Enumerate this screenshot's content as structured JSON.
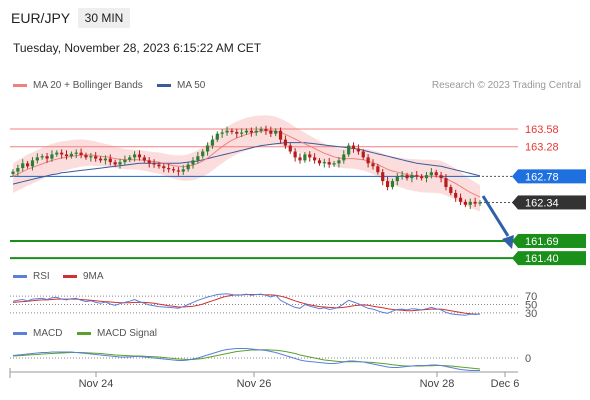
{
  "header": {
    "symbol": "EUR/JPY",
    "timeframe": "30 MIN",
    "datetime": "Tuesday, November 28, 2023 6:15:22 AM CET"
  },
  "legend": {
    "ma20_label": "MA 20 + Bollinger Bands",
    "ma50_label": "MA 50",
    "credit": "Research © 2023 Trading Central"
  },
  "rsi_legend": {
    "rsi_label": "RSI",
    "ma9_label": "9MA"
  },
  "macd_legend": {
    "macd_label": "MACD",
    "signal_label": "MACD Signal"
  },
  "colors": {
    "ma20": "#f08080",
    "bands_fill": "#fbd5d5",
    "ma50": "#3a5a9a",
    "up": "#2e7d32",
    "down": "#b71c1c",
    "support": "#1a8f1a",
    "resistance": "#f08080",
    "pivot": "#1565c0",
    "current": "#333333",
    "rsi": "#5b7fdb",
    "rsi_ma": "#d32f2f",
    "macd": "#5b7fdb",
    "macd_signal": "#5aa02c"
  },
  "chart_data": {
    "type": "candlestick",
    "x_ticks": [
      "Nov 24",
      "Nov 26",
      "Nov 28",
      "Dec 6"
    ],
    "price_ylim": [
      161.2,
      163.9
    ],
    "levels": [
      {
        "value": 163.58,
        "label": "163.58",
        "kind": "resistance"
      },
      {
        "value": 163.28,
        "label": "163.28",
        "kind": "resistance"
      },
      {
        "value": 162.78,
        "label": "162.78",
        "kind": "pivot"
      },
      {
        "value": 162.34,
        "label": "162.34",
        "kind": "current"
      },
      {
        "value": 161.69,
        "label": "161.69",
        "kind": "support"
      },
      {
        "value": 161.4,
        "label": "161.40",
        "kind": "support"
      }
    ],
    "closes": [
      162.86,
      162.92,
      163.0,
      162.95,
      163.05,
      163.1,
      163.12,
      163.08,
      163.15,
      163.18,
      163.15,
      163.12,
      163.16,
      163.18,
      163.14,
      163.1,
      163.12,
      163.08,
      163.05,
      163.08,
      163.02,
      162.98,
      163.02,
      163.06,
      163.1,
      163.15,
      163.1,
      163.05,
      163.0,
      162.98,
      162.95,
      162.92,
      162.9,
      162.88,
      162.86,
      162.9,
      162.98,
      163.05,
      163.12,
      163.2,
      163.3,
      163.4,
      163.5,
      163.52,
      163.55,
      163.53,
      163.5,
      163.52,
      163.55,
      163.52,
      163.55,
      163.58,
      163.55,
      163.5,
      163.55,
      163.4,
      163.3,
      163.2,
      163.1,
      163.05,
      163.15,
      163.1,
      163.05,
      163.0,
      163.02,
      162.98,
      163.0,
      163.05,
      163.15,
      163.3,
      163.25,
      163.2,
      163.1,
      163.0,
      162.95,
      162.85,
      162.7,
      162.6,
      162.7,
      162.78,
      162.8,
      162.75,
      162.8,
      162.78,
      162.75,
      162.8,
      162.85,
      162.8,
      162.75,
      162.6,
      162.5,
      162.42,
      162.35,
      162.3,
      162.35,
      162.32,
      162.34
    ],
    "ma20": [
      162.78,
      162.82,
      162.86,
      162.9,
      162.93,
      162.96,
      162.99,
      163.02,
      163.05,
      163.07,
      163.09,
      163.1,
      163.12,
      163.13,
      163.14,
      163.14,
      163.14,
      163.13,
      163.12,
      163.11,
      163.1,
      163.08,
      163.07,
      163.06,
      163.06,
      163.06,
      163.06,
      163.05,
      163.04,
      163.03,
      163.02,
      163.0,
      162.98,
      162.96,
      162.95,
      162.94,
      162.95,
      162.97,
      163.0,
      163.04,
      163.09,
      163.15,
      163.22,
      163.28,
      163.34,
      163.39,
      163.43,
      163.46,
      163.49,
      163.51,
      163.53,
      163.54,
      163.55,
      163.55,
      163.54,
      163.52,
      163.49,
      163.45,
      163.41,
      163.37,
      163.33,
      163.29,
      163.25,
      163.21,
      163.17,
      163.14,
      163.11,
      163.09,
      163.08,
      163.08,
      163.08,
      163.07,
      163.06,
      163.04,
      163.01,
      162.98,
      162.94,
      162.9,
      162.87,
      162.85,
      162.83,
      162.81,
      162.8,
      162.79,
      162.78,
      162.78,
      162.78,
      162.78,
      162.77,
      162.74,
      162.7,
      162.66,
      162.61,
      162.56,
      162.51,
      162.47,
      162.43
    ],
    "ma50": [
      162.65,
      162.67,
      162.69,
      162.71,
      162.73,
      162.75,
      162.77,
      162.79,
      162.81,
      162.82,
      162.84,
      162.85,
      162.86,
      162.87,
      162.88,
      162.89,
      162.9,
      162.91,
      162.92,
      162.93,
      162.94,
      162.95,
      162.96,
      162.97,
      162.98,
      162.99,
      163.0,
      163.0,
      163.0,
      163.0,
      163.0,
      163.0,
      163.0,
      163.0,
      163.0,
      163.01,
      163.02,
      163.03,
      163.04,
      163.06,
      163.08,
      163.1,
      163.12,
      163.14,
      163.16,
      163.18,
      163.2,
      163.22,
      163.24,
      163.26,
      163.28,
      163.3,
      163.31,
      163.32,
      163.33,
      163.34,
      163.35,
      163.35,
      163.35,
      163.35,
      163.35,
      163.34,
      163.33,
      163.32,
      163.31,
      163.3,
      163.29,
      163.28,
      163.27,
      163.26,
      163.25,
      163.24,
      163.22,
      163.2,
      163.18,
      163.16,
      163.14,
      163.12,
      163.1,
      163.08,
      163.06,
      163.04,
      163.02,
      163.0,
      162.99,
      162.98,
      162.97,
      162.96,
      162.95,
      162.93,
      162.91,
      162.89,
      162.87,
      162.85,
      162.83,
      162.81,
      162.79
    ],
    "rsi_ticks": [
      70,
      50,
      30
    ],
    "rsi": [
      58,
      60,
      62,
      59,
      63,
      64,
      65,
      62,
      66,
      67,
      63,
      61,
      64,
      65,
      60,
      57,
      59,
      55,
      53,
      56,
      51,
      48,
      52,
      55,
      58,
      62,
      57,
      53,
      49,
      47,
      45,
      44,
      43,
      42,
      41,
      45,
      50,
      55,
      60,
      64,
      68,
      71,
      74,
      75,
      76,
      74,
      72,
      73,
      75,
      72,
      74,
      75,
      72,
      68,
      72,
      60,
      54,
      48,
      43,
      41,
      50,
      46,
      43,
      40,
      42,
      38,
      40,
      44,
      52,
      60,
      56,
      52,
      46,
      41,
      39,
      35,
      31,
      29,
      34,
      38,
      39,
      37,
      40,
      39,
      37,
      40,
      43,
      40,
      37,
      31,
      28,
      26,
      25,
      24,
      27,
      26,
      28
    ],
    "rsi_ma": [
      55,
      56,
      57,
      58,
      59,
      60,
      61,
      61,
      62,
      63,
      63,
      63,
      63,
      63,
      62,
      61,
      60,
      59,
      58,
      57,
      56,
      55,
      54,
      54,
      54,
      55,
      55,
      55,
      54,
      53,
      51,
      49,
      47,
      46,
      44,
      44,
      45,
      46,
      48,
      51,
      55,
      59,
      63,
      67,
      70,
      72,
      73,
      73,
      74,
      74,
      74,
      74,
      73,
      73,
      72,
      70,
      67,
      63,
      59,
      55,
      52,
      49,
      47,
      45,
      44,
      43,
      42,
      42,
      43,
      45,
      47,
      48,
      49,
      48,
      46,
      44,
      42,
      40,
      38,
      37,
      36,
      35,
      35,
      36,
      37,
      38,
      39,
      39,
      39,
      37,
      35,
      33,
      31,
      29,
      28,
      27,
      27
    ],
    "macd_zero_label": "0",
    "macd": [
      0.05,
      0.06,
      0.07,
      0.08,
      0.09,
      0.1,
      0.11,
      0.11,
      0.12,
      0.12,
      0.12,
      0.12,
      0.12,
      0.11,
      0.1,
      0.09,
      0.08,
      0.07,
      0.06,
      0.05,
      0.04,
      0.03,
      0.02,
      0.02,
      0.02,
      0.03,
      0.03,
      0.02,
      0.01,
      0.0,
      -0.01,
      -0.02,
      -0.03,
      -0.04,
      -0.05,
      -0.05,
      -0.04,
      -0.02,
      0.0,
      0.03,
      0.06,
      0.09,
      0.12,
      0.15,
      0.17,
      0.18,
      0.19,
      0.19,
      0.19,
      0.18,
      0.17,
      0.16,
      0.15,
      0.13,
      0.11,
      0.08,
      0.05,
      0.02,
      -0.01,
      -0.04,
      -0.06,
      -0.07,
      -0.08,
      -0.09,
      -0.1,
      -0.11,
      -0.11,
      -0.1,
      -0.08,
      -0.06,
      -0.06,
      -0.07,
      -0.08,
      -0.1,
      -0.12,
      -0.14,
      -0.16,
      -0.18,
      -0.19,
      -0.19,
      -0.18,
      -0.17,
      -0.16,
      -0.15,
      -0.15,
      -0.15,
      -0.14,
      -0.14,
      -0.15,
      -0.17,
      -0.19,
      -0.21,
      -0.23,
      -0.24,
      -0.25,
      -0.25,
      -0.25
    ],
    "macd_signal": [
      0.04,
      0.045,
      0.05,
      0.06,
      0.065,
      0.07,
      0.08,
      0.085,
      0.09,
      0.095,
      0.1,
      0.105,
      0.11,
      0.11,
      0.11,
      0.105,
      0.1,
      0.095,
      0.09,
      0.08,
      0.07,
      0.06,
      0.055,
      0.05,
      0.045,
      0.04,
      0.04,
      0.035,
      0.03,
      0.025,
      0.02,
      0.01,
      0.0,
      -0.01,
      -0.02,
      -0.025,
      -0.03,
      -0.03,
      -0.02,
      -0.01,
      0.01,
      0.03,
      0.05,
      0.07,
      0.09,
      0.11,
      0.13,
      0.14,
      0.15,
      0.16,
      0.16,
      0.165,
      0.165,
      0.16,
      0.155,
      0.145,
      0.13,
      0.11,
      0.09,
      0.06,
      0.04,
      0.02,
      0.0,
      -0.02,
      -0.04,
      -0.05,
      -0.06,
      -0.07,
      -0.075,
      -0.075,
      -0.075,
      -0.075,
      -0.08,
      -0.085,
      -0.09,
      -0.1,
      -0.11,
      -0.12,
      -0.135,
      -0.145,
      -0.155,
      -0.16,
      -0.16,
      -0.16,
      -0.16,
      -0.155,
      -0.155,
      -0.15,
      -0.15,
      -0.155,
      -0.16,
      -0.17,
      -0.18,
      -0.19,
      -0.2,
      -0.21,
      -0.22
    ]
  }
}
